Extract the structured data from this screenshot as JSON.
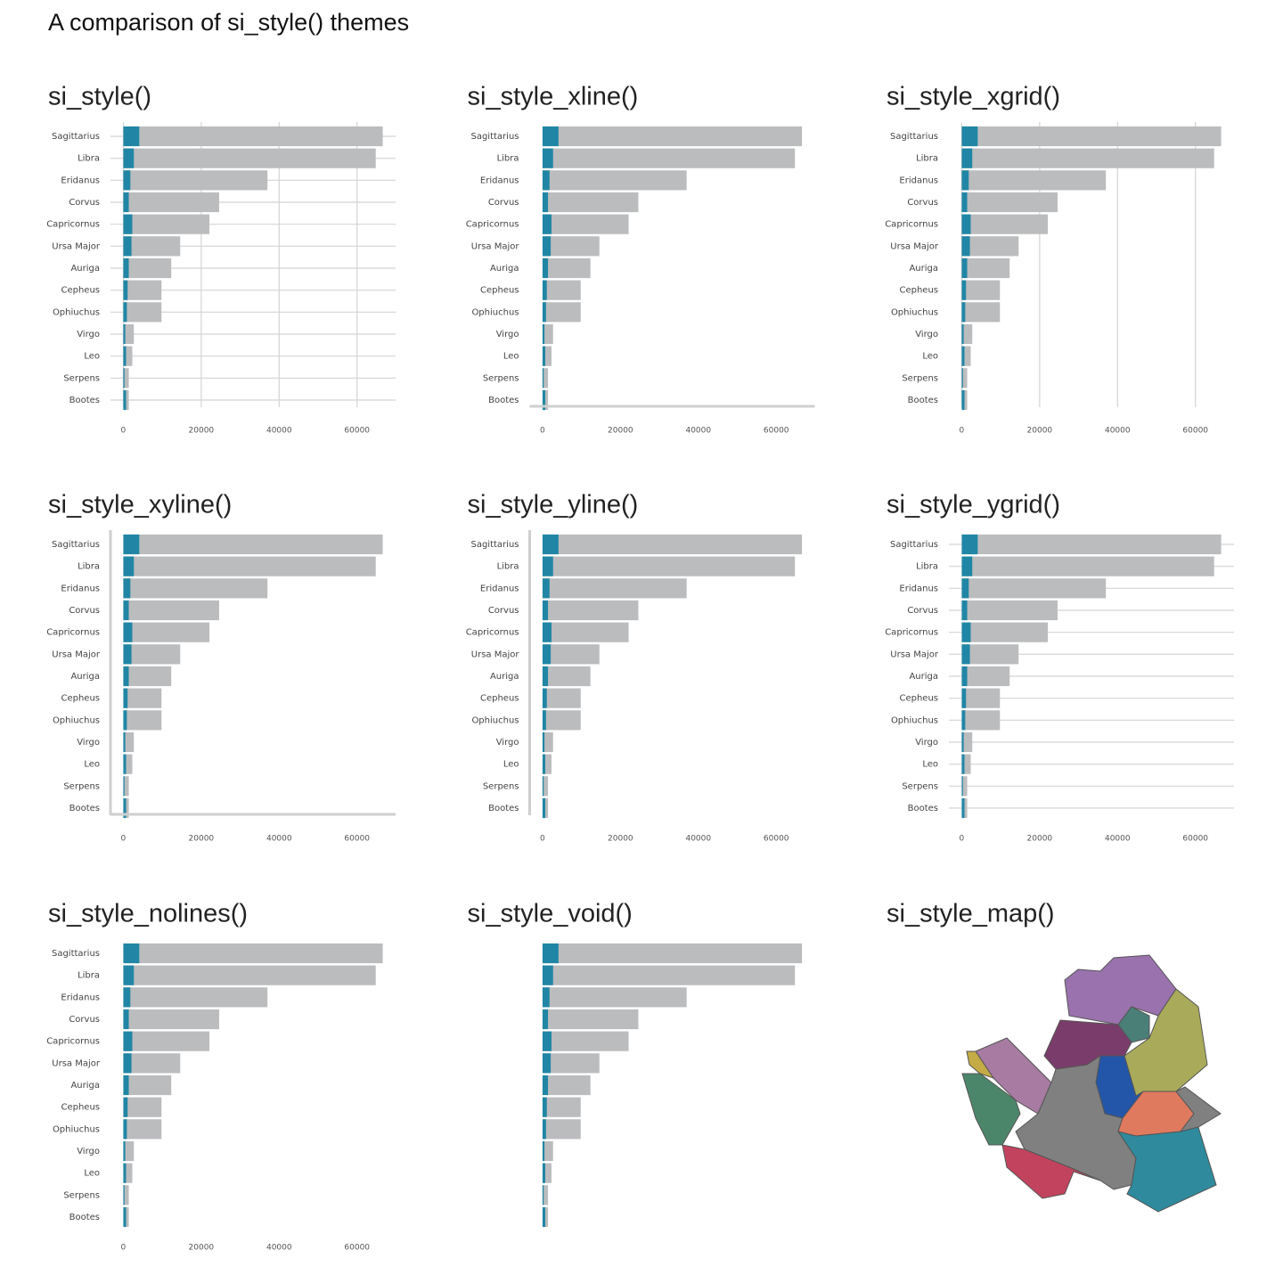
{
  "title": "A comparison of si_style() themes",
  "chart_data": [
    {
      "type": "bar",
      "title": "si_style()",
      "grid": "xy",
      "axis_line": "none",
      "axis_labels": true,
      "categories": [
        "Sagittarius",
        "Libra",
        "Eridanus",
        "Corvus",
        "Capricornus",
        "Ursa Major",
        "Auriga",
        "Cepheus",
        "Ophiuchus",
        "Virgo",
        "Leo",
        "Serpens",
        "Bootes"
      ],
      "series": [
        {
          "color": "#bbbcbe",
          "values": [
            66600,
            64800,
            37000,
            24600,
            22100,
            14600,
            12300,
            9800,
            9800,
            2700,
            2300,
            1400,
            1400
          ]
        },
        {
          "color": "#2186a5",
          "values": [
            4100,
            2700,
            1800,
            1400,
            2300,
            2100,
            1400,
            1100,
            900,
            500,
            700,
            300,
            700
          ]
        }
      ],
      "xlim": [
        -3300,
        69900
      ],
      "xticks": [
        0,
        20000,
        40000,
        60000
      ]
    },
    {
      "type": "bar",
      "title": "si_style_xline()",
      "grid": "none",
      "axis_line": "x",
      "axis_labels": true,
      "categories": [
        "Sagittarius",
        "Libra",
        "Eridanus",
        "Corvus",
        "Capricornus",
        "Ursa Major",
        "Auriga",
        "Cepheus",
        "Ophiuchus",
        "Virgo",
        "Leo",
        "Serpens",
        "Bootes"
      ],
      "series": [
        {
          "color": "#bbbcbe",
          "values": [
            66600,
            64800,
            37000,
            24600,
            22100,
            14600,
            12300,
            9800,
            9800,
            2700,
            2300,
            1400,
            1400
          ]
        },
        {
          "color": "#2186a5",
          "values": [
            4100,
            2700,
            1800,
            1400,
            2300,
            2100,
            1400,
            1100,
            900,
            500,
            700,
            300,
            700
          ]
        }
      ],
      "xlim": [
        -3300,
        69900
      ],
      "xticks": [
        0,
        20000,
        40000,
        60000
      ]
    },
    {
      "type": "bar",
      "title": "si_style_xgrid()",
      "grid": "x",
      "axis_line": "none",
      "axis_labels": true,
      "categories": [
        "Sagittarius",
        "Libra",
        "Eridanus",
        "Corvus",
        "Capricornus",
        "Ursa Major",
        "Auriga",
        "Cepheus",
        "Ophiuchus",
        "Virgo",
        "Leo",
        "Serpens",
        "Bootes"
      ],
      "series": [
        {
          "color": "#bbbcbe",
          "values": [
            66600,
            64800,
            37000,
            24600,
            22100,
            14600,
            12300,
            9800,
            9800,
            2700,
            2300,
            1400,
            1400
          ]
        },
        {
          "color": "#2186a5",
          "values": [
            4100,
            2700,
            1800,
            1400,
            2300,
            2100,
            1400,
            1100,
            900,
            500,
            700,
            300,
            700
          ]
        }
      ],
      "xlim": [
        -3300,
        69900
      ],
      "xticks": [
        0,
        20000,
        40000,
        60000
      ]
    },
    {
      "type": "bar",
      "title": "si_style_xyline()",
      "grid": "none",
      "axis_line": "xy",
      "axis_labels": true,
      "categories": [
        "Sagittarius",
        "Libra",
        "Eridanus",
        "Corvus",
        "Capricornus",
        "Ursa Major",
        "Auriga",
        "Cepheus",
        "Ophiuchus",
        "Virgo",
        "Leo",
        "Serpens",
        "Bootes"
      ],
      "series": [
        {
          "color": "#bbbcbe",
          "values": [
            66600,
            64800,
            37000,
            24600,
            22100,
            14600,
            12300,
            9800,
            9800,
            2700,
            2300,
            1400,
            1400
          ]
        },
        {
          "color": "#2186a5",
          "values": [
            4100,
            2700,
            1800,
            1400,
            2300,
            2100,
            1400,
            1100,
            900,
            500,
            700,
            300,
            700
          ]
        }
      ],
      "xlim": [
        -3300,
        69900
      ],
      "xticks": [
        0,
        20000,
        40000,
        60000
      ]
    },
    {
      "type": "bar",
      "title": "si_style_yline()",
      "grid": "none",
      "axis_line": "y",
      "axis_labels": true,
      "categories": [
        "Sagittarius",
        "Libra",
        "Eridanus",
        "Corvus",
        "Capricornus",
        "Ursa Major",
        "Auriga",
        "Cepheus",
        "Ophiuchus",
        "Virgo",
        "Leo",
        "Serpens",
        "Bootes"
      ],
      "series": [
        {
          "color": "#bbbcbe",
          "values": [
            66600,
            64800,
            37000,
            24600,
            22100,
            14600,
            12300,
            9800,
            9800,
            2700,
            2300,
            1400,
            1400
          ]
        },
        {
          "color": "#2186a5",
          "values": [
            4100,
            2700,
            1800,
            1400,
            2300,
            2100,
            1400,
            1100,
            900,
            500,
            700,
            300,
            700
          ]
        }
      ],
      "xlim": [
        -3300,
        69900
      ],
      "xticks": [
        0,
        20000,
        40000,
        60000
      ]
    },
    {
      "type": "bar",
      "title": "si_style_ygrid()",
      "grid": "y",
      "axis_line": "none",
      "axis_labels": true,
      "categories": [
        "Sagittarius",
        "Libra",
        "Eridanus",
        "Corvus",
        "Capricornus",
        "Ursa Major",
        "Auriga",
        "Cepheus",
        "Ophiuchus",
        "Virgo",
        "Leo",
        "Serpens",
        "Bootes"
      ],
      "series": [
        {
          "color": "#bbbcbe",
          "values": [
            66600,
            64800,
            37000,
            24600,
            22100,
            14600,
            12300,
            9800,
            9800,
            2700,
            2300,
            1400,
            1400
          ]
        },
        {
          "color": "#2186a5",
          "values": [
            4100,
            2700,
            1800,
            1400,
            2300,
            2100,
            1400,
            1100,
            900,
            500,
            700,
            300,
            700
          ]
        }
      ],
      "xlim": [
        -3300,
        69900
      ],
      "xticks": [
        0,
        20000,
        40000,
        60000
      ]
    },
    {
      "type": "bar",
      "title": "si_style_nolines()",
      "grid": "none",
      "axis_line": "none",
      "axis_labels": true,
      "categories": [
        "Sagittarius",
        "Libra",
        "Eridanus",
        "Corvus",
        "Capricornus",
        "Ursa Major",
        "Auriga",
        "Cepheus",
        "Ophiuchus",
        "Virgo",
        "Leo",
        "Serpens",
        "Bootes"
      ],
      "series": [
        {
          "color": "#bbbcbe",
          "values": [
            66600,
            64800,
            37000,
            24600,
            22100,
            14600,
            12300,
            9800,
            9800,
            2700,
            2300,
            1400,
            1400
          ]
        },
        {
          "color": "#2186a5",
          "values": [
            4100,
            2700,
            1800,
            1400,
            2300,
            2100,
            1400,
            1100,
            900,
            500,
            700,
            300,
            700
          ]
        }
      ],
      "xlim": [
        -3300,
        69900
      ],
      "xticks": [
        0,
        20000,
        40000,
        60000
      ]
    },
    {
      "type": "bar",
      "title": "si_style_void()",
      "grid": "none",
      "axis_line": "none",
      "axis_labels": false,
      "series": [
        {
          "color": "#bbbcbe",
          "values": [
            66600,
            64800,
            37000,
            24600,
            22100,
            14600,
            12300,
            9800,
            9800,
            2700,
            2300,
            1400,
            1400
          ]
        },
        {
          "color": "#2186a5",
          "values": [
            4100,
            2700,
            1800,
            1400,
            2300,
            2100,
            1400,
            1100,
            900,
            500,
            700,
            300,
            700
          ]
        }
      ],
      "xlim": [
        -3300,
        69900
      ]
    },
    {
      "type": "map",
      "title": "si_style_map()"
    }
  ]
}
